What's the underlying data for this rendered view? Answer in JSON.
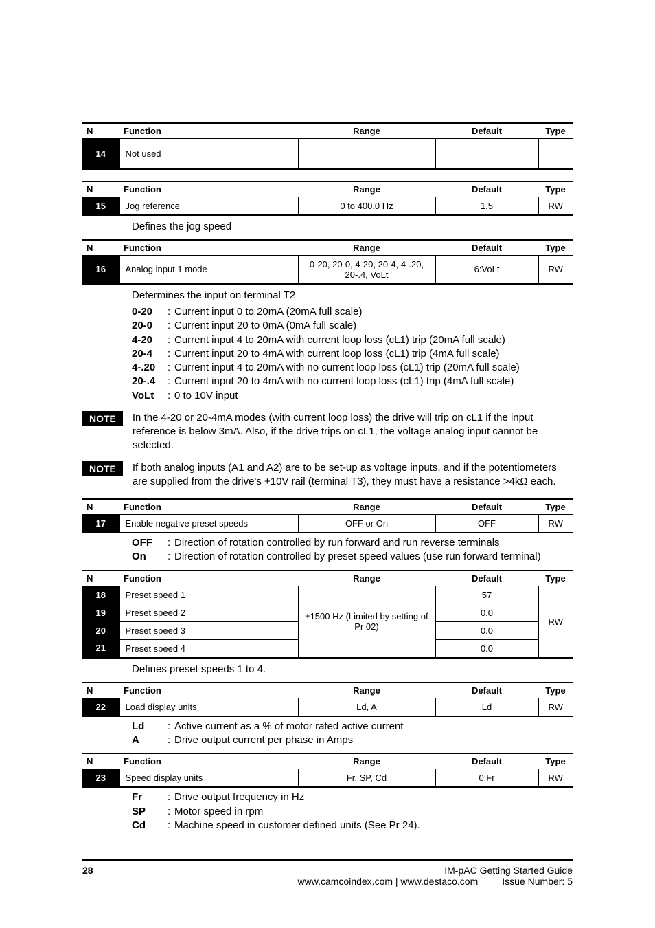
{
  "columns": {
    "number": "N",
    "function": "Function",
    "range": "Range",
    "default": "Default",
    "type": "Type"
  },
  "tables": {
    "t14": {
      "id": "14",
      "func": "Not used",
      "range": "",
      "def": "",
      "type": ""
    },
    "t15": {
      "id": "15",
      "func": "Jog reference",
      "range": "0 to 400.0 Hz",
      "def": "1.5",
      "type": "RW"
    },
    "t16": {
      "id": "16",
      "func": "Analog input 1 mode",
      "range": "0-20, 20-0, 4-20, 20-4, 4-.20, 20-.4, VoLt",
      "def": "6:VoLt",
      "type": "RW"
    },
    "t17": {
      "id": "17",
      "func": "Enable negative preset speeds",
      "range": "OFF or On",
      "def": "OFF",
      "type": "RW"
    },
    "presets": {
      "range": "±1500 Hz (Limited by setting of Pr 02)",
      "type": "RW",
      "rows": [
        {
          "id": "18",
          "func": "Preset speed 1",
          "def": "57"
        },
        {
          "id": "19",
          "func": "Preset speed 2",
          "def": "0.0"
        },
        {
          "id": "20",
          "func": "Preset speed 3",
          "def": "0.0"
        },
        {
          "id": "21",
          "func": "Preset speed 4",
          "def": "0.0"
        }
      ]
    },
    "t22": {
      "id": "22",
      "func": "Load display units",
      "range": "Ld, A",
      "def": "Ld",
      "type": "RW"
    },
    "t23": {
      "id": "23",
      "func": "Speed display units",
      "range": "Fr, SP, Cd",
      "def": "0:Fr",
      "type": "RW"
    }
  },
  "desc": {
    "d15": "Defines the jog speed",
    "d16_intro": "Determines the input on terminal T2",
    "d16_opts": [
      {
        "k": "0-20",
        "v": "Current input 0 to 20mA (20mA full scale)"
      },
      {
        "k": "20-0",
        "v": "Current input 20 to 0mA (0mA full scale)"
      },
      {
        "k": "4-20",
        "v": "Current input 4 to 20mA with current loop loss (cL1) trip (20mA full scale)"
      },
      {
        "k": "20-4",
        "v": "Current input 20 to 4mA with current loop loss (cL1) trip (4mA full scale)"
      },
      {
        "k": "4-.20",
        "v": "Current input 4 to 20mA with no current loop loss (cL1) trip (20mA full scale)"
      },
      {
        "k": "20-.4",
        "v": "Current input 20 to 4mA with no current loop loss (cL1) trip (4mA full scale)"
      },
      {
        "k": "VoLt",
        "v": "0 to 10V input"
      }
    ],
    "d17_opts": [
      {
        "k": "OFF",
        "v": "Direction of rotation controlled by run forward and run reverse terminals"
      },
      {
        "k": "On",
        "v": "Direction of rotation controlled by preset speed values (use run forward terminal)"
      }
    ],
    "d_presets": "Defines preset speeds 1 to 4.",
    "d22_opts": [
      {
        "k": "Ld",
        "v": "Active current as a % of motor rated active current"
      },
      {
        "k": "A",
        "v": "Drive output current per phase in Amps"
      }
    ],
    "d23_opts": [
      {
        "k": "Fr",
        "v": "Drive output frequency in Hz"
      },
      {
        "k": "SP",
        "v": "Motor speed in rpm"
      },
      {
        "k": "Cd",
        "v": "Machine speed in customer defined units (See Pr 24)."
      }
    ]
  },
  "notes": {
    "label": "NOTE",
    "n1": "In the 4-20 or 20-4mA modes (with current loop loss) the drive will trip on cL1 if the input reference is below 3mA. Also, if the drive trips on cL1, the voltage analog input cannot be selected.",
    "n2": "If both analog inputs (A1 and A2) are to be set-up as voltage inputs, and if the potentiometers are supplied from the drive's +10V rail (terminal T3), they must have a resistance >4kΩ each."
  },
  "footer": {
    "page_num": "28",
    "title": "IM-pAC Getting Started Guide",
    "url": "www.camcoindex.com | www.destaco.com",
    "issue": "Issue Number:  5"
  }
}
